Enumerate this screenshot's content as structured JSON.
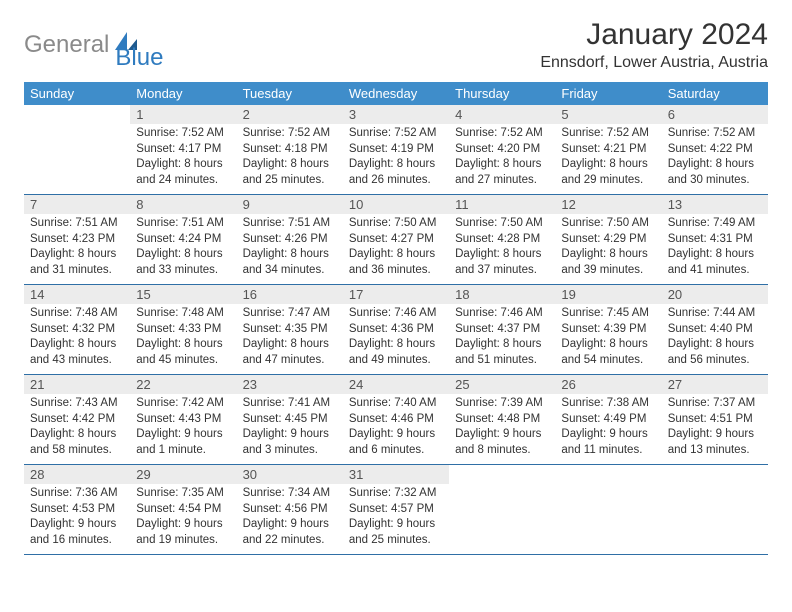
{
  "brand": {
    "gray": "General",
    "blue": "Blue"
  },
  "title": "January 2024",
  "location": "Ennsdorf, Lower Austria, Austria",
  "colors": {
    "header_bg": "#3f8dca",
    "header_text": "#ffffff",
    "daynum_bg": "#ececec",
    "rule": "#2f6fa6",
    "logo_gray": "#8a8a8a",
    "logo_blue": "#2f7bbf",
    "body_text": "#333333",
    "page_bg": "#ffffff"
  },
  "dow": [
    "Sunday",
    "Monday",
    "Tuesday",
    "Wednesday",
    "Thursday",
    "Friday",
    "Saturday"
  ],
  "weeks": [
    [
      {
        "n": "",
        "lines": []
      },
      {
        "n": "1",
        "lines": [
          "Sunrise: 7:52 AM",
          "Sunset: 4:17 PM",
          "Daylight: 8 hours and 24 minutes."
        ]
      },
      {
        "n": "2",
        "lines": [
          "Sunrise: 7:52 AM",
          "Sunset: 4:18 PM",
          "Daylight: 8 hours and 25 minutes."
        ]
      },
      {
        "n": "3",
        "lines": [
          "Sunrise: 7:52 AM",
          "Sunset: 4:19 PM",
          "Daylight: 8 hours and 26 minutes."
        ]
      },
      {
        "n": "4",
        "lines": [
          "Sunrise: 7:52 AM",
          "Sunset: 4:20 PM",
          "Daylight: 8 hours and 27 minutes."
        ]
      },
      {
        "n": "5",
        "lines": [
          "Sunrise: 7:52 AM",
          "Sunset: 4:21 PM",
          "Daylight: 8 hours and 29 minutes."
        ]
      },
      {
        "n": "6",
        "lines": [
          "Sunrise: 7:52 AM",
          "Sunset: 4:22 PM",
          "Daylight: 8 hours and 30 minutes."
        ]
      }
    ],
    [
      {
        "n": "7",
        "lines": [
          "Sunrise: 7:51 AM",
          "Sunset: 4:23 PM",
          "Daylight: 8 hours and 31 minutes."
        ]
      },
      {
        "n": "8",
        "lines": [
          "Sunrise: 7:51 AM",
          "Sunset: 4:24 PM",
          "Daylight: 8 hours and 33 minutes."
        ]
      },
      {
        "n": "9",
        "lines": [
          "Sunrise: 7:51 AM",
          "Sunset: 4:26 PM",
          "Daylight: 8 hours and 34 minutes."
        ]
      },
      {
        "n": "10",
        "lines": [
          "Sunrise: 7:50 AM",
          "Sunset: 4:27 PM",
          "Daylight: 8 hours and 36 minutes."
        ]
      },
      {
        "n": "11",
        "lines": [
          "Sunrise: 7:50 AM",
          "Sunset: 4:28 PM",
          "Daylight: 8 hours and 37 minutes."
        ]
      },
      {
        "n": "12",
        "lines": [
          "Sunrise: 7:50 AM",
          "Sunset: 4:29 PM",
          "Daylight: 8 hours and 39 minutes."
        ]
      },
      {
        "n": "13",
        "lines": [
          "Sunrise: 7:49 AM",
          "Sunset: 4:31 PM",
          "Daylight: 8 hours and 41 minutes."
        ]
      }
    ],
    [
      {
        "n": "14",
        "lines": [
          "Sunrise: 7:48 AM",
          "Sunset: 4:32 PM",
          "Daylight: 8 hours and 43 minutes."
        ]
      },
      {
        "n": "15",
        "lines": [
          "Sunrise: 7:48 AM",
          "Sunset: 4:33 PM",
          "Daylight: 8 hours and 45 minutes."
        ]
      },
      {
        "n": "16",
        "lines": [
          "Sunrise: 7:47 AM",
          "Sunset: 4:35 PM",
          "Daylight: 8 hours and 47 minutes."
        ]
      },
      {
        "n": "17",
        "lines": [
          "Sunrise: 7:46 AM",
          "Sunset: 4:36 PM",
          "Daylight: 8 hours and 49 minutes."
        ]
      },
      {
        "n": "18",
        "lines": [
          "Sunrise: 7:46 AM",
          "Sunset: 4:37 PM",
          "Daylight: 8 hours and 51 minutes."
        ]
      },
      {
        "n": "19",
        "lines": [
          "Sunrise: 7:45 AM",
          "Sunset: 4:39 PM",
          "Daylight: 8 hours and 54 minutes."
        ]
      },
      {
        "n": "20",
        "lines": [
          "Sunrise: 7:44 AM",
          "Sunset: 4:40 PM",
          "Daylight: 8 hours and 56 minutes."
        ]
      }
    ],
    [
      {
        "n": "21",
        "lines": [
          "Sunrise: 7:43 AM",
          "Sunset: 4:42 PM",
          "Daylight: 8 hours and 58 minutes."
        ]
      },
      {
        "n": "22",
        "lines": [
          "Sunrise: 7:42 AM",
          "Sunset: 4:43 PM",
          "Daylight: 9 hours and 1 minute."
        ]
      },
      {
        "n": "23",
        "lines": [
          "Sunrise: 7:41 AM",
          "Sunset: 4:45 PM",
          "Daylight: 9 hours and 3 minutes."
        ]
      },
      {
        "n": "24",
        "lines": [
          "Sunrise: 7:40 AM",
          "Sunset: 4:46 PM",
          "Daylight: 9 hours and 6 minutes."
        ]
      },
      {
        "n": "25",
        "lines": [
          "Sunrise: 7:39 AM",
          "Sunset: 4:48 PM",
          "Daylight: 9 hours and 8 minutes."
        ]
      },
      {
        "n": "26",
        "lines": [
          "Sunrise: 7:38 AM",
          "Sunset: 4:49 PM",
          "Daylight: 9 hours and 11 minutes."
        ]
      },
      {
        "n": "27",
        "lines": [
          "Sunrise: 7:37 AM",
          "Sunset: 4:51 PM",
          "Daylight: 9 hours and 13 minutes."
        ]
      }
    ],
    [
      {
        "n": "28",
        "lines": [
          "Sunrise: 7:36 AM",
          "Sunset: 4:53 PM",
          "Daylight: 9 hours and 16 minutes."
        ]
      },
      {
        "n": "29",
        "lines": [
          "Sunrise: 7:35 AM",
          "Sunset: 4:54 PM",
          "Daylight: 9 hours and 19 minutes."
        ]
      },
      {
        "n": "30",
        "lines": [
          "Sunrise: 7:34 AM",
          "Sunset: 4:56 PM",
          "Daylight: 9 hours and 22 minutes."
        ]
      },
      {
        "n": "31",
        "lines": [
          "Sunrise: 7:32 AM",
          "Sunset: 4:57 PM",
          "Daylight: 9 hours and 25 minutes."
        ]
      },
      {
        "n": "",
        "lines": []
      },
      {
        "n": "",
        "lines": []
      },
      {
        "n": "",
        "lines": []
      }
    ]
  ]
}
